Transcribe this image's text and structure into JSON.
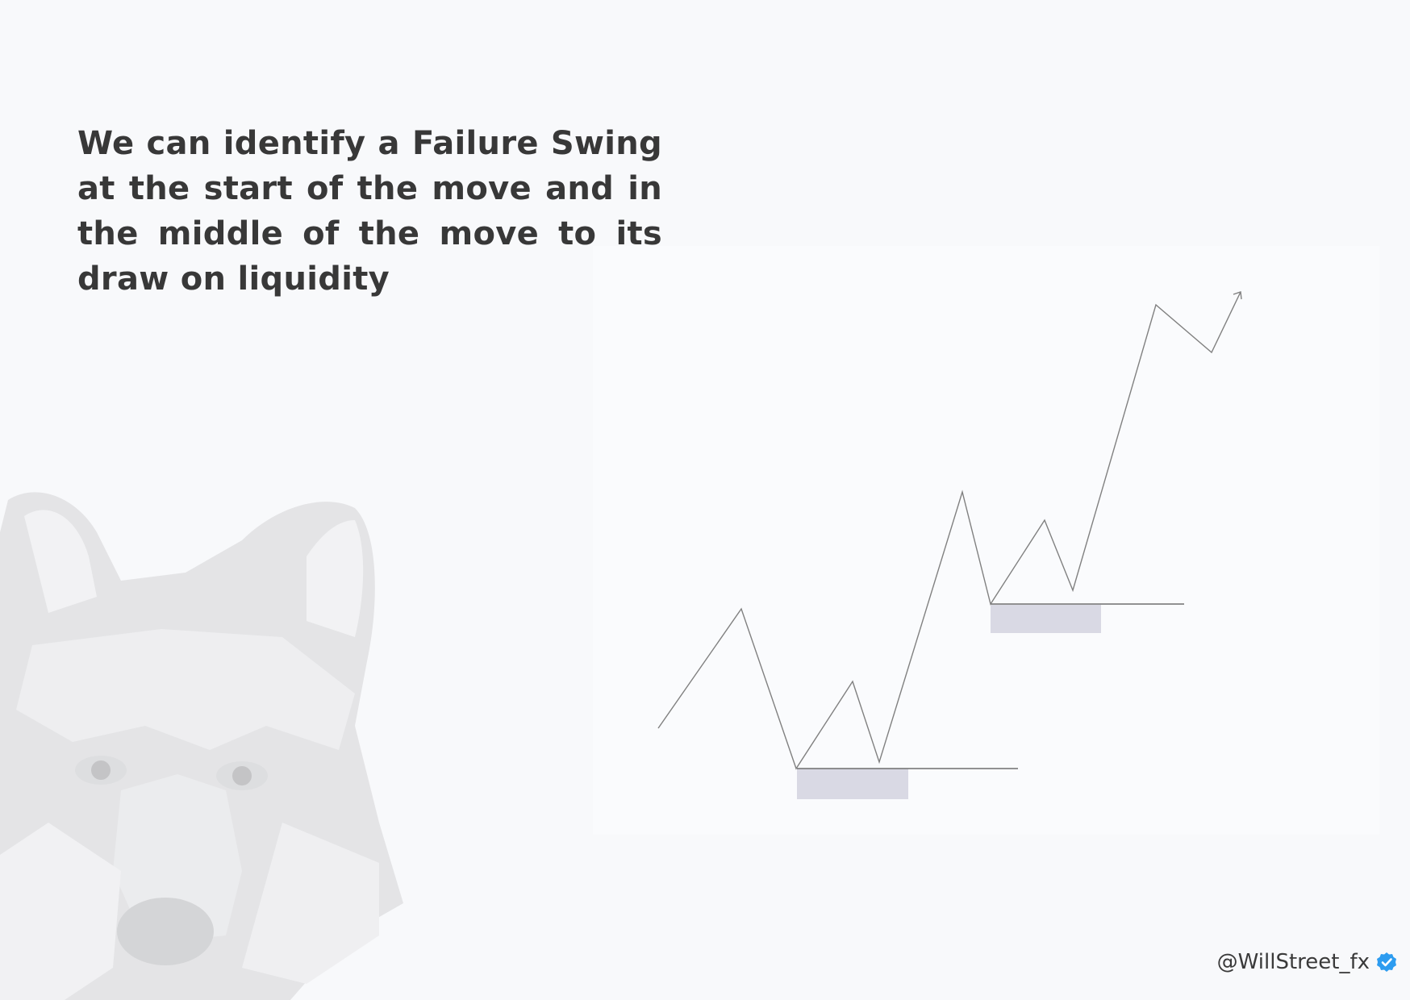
{
  "heading": "We can identify a Failure Swing at the start of the move and in the middle of the move to its draw on liquidity",
  "credit": {
    "handle": "@WillStreet_fx",
    "icon": "verified-badge-icon",
    "icon_color": "#2d9cf0"
  },
  "colors": {
    "price_line": "#808080",
    "level_line": "#6e6e6e",
    "zone_fill": "#d9d9e4",
    "background": "#f8f9fb"
  }
}
